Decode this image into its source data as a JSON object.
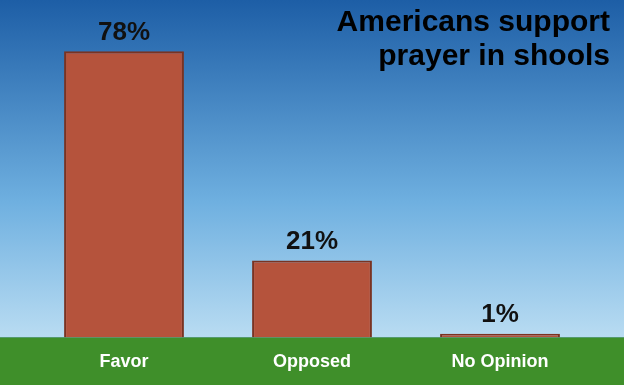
{
  "chart_data": {
    "type": "bar",
    "title": "Americans support prayer in shools",
    "categories": [
      "Favor",
      "Opposed",
      "No Opinion"
    ],
    "values": [
      78,
      21,
      1
    ],
    "value_labels": [
      "78%",
      "21%",
      "1%"
    ],
    "color": "#b5533c",
    "data_labels": true,
    "tick_labels": "x",
    "grid": false
  }
}
